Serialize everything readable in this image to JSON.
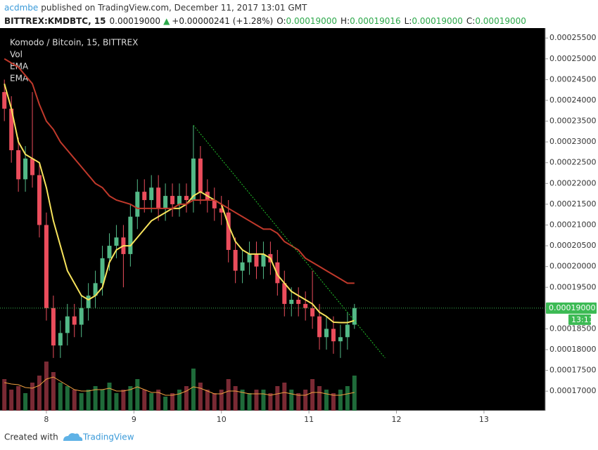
{
  "header": {
    "author": "acdmbe",
    "published": "published on TradingView.com, December 11, 2017 13:01 GMT",
    "symbol": "BITTREX:KMDBTC, 15",
    "last": "0.00019000",
    "arrow": "▲",
    "change": "+0.00000241 (+1.28%)",
    "ohlc": [
      {
        "label": "O:",
        "value": "0.00019000"
      },
      {
        "label": "H:",
        "value": "0.00019016"
      },
      {
        "label": "L:",
        "value": "0.00019000"
      },
      {
        "label": "C:",
        "value": "0.00019000"
      }
    ]
  },
  "chart_data": {
    "type": "candlestick",
    "title": "Komodo / Bitcoin, 15, BITTREX",
    "x": [
      7.52,
      7.6,
      7.68,
      7.76,
      7.84,
      7.92,
      8.0,
      8.08,
      8.16,
      8.24,
      8.32,
      8.4,
      8.48,
      8.56,
      8.64,
      8.72,
      8.8,
      8.88,
      8.96,
      9.04,
      9.12,
      9.2,
      9.28,
      9.36,
      9.44,
      9.52,
      9.6,
      9.68,
      9.76,
      9.84,
      9.92,
      10.0,
      10.08,
      10.16,
      10.24,
      10.32,
      10.4,
      10.48,
      10.56,
      10.64,
      10.72,
      10.8,
      10.88,
      10.96,
      11.04,
      11.12,
      11.2,
      11.28,
      11.36,
      11.44,
      11.52
    ],
    "candles": {
      "up_color": "#53b987",
      "down_color": "#eb4d5c",
      "open": [
        0.000242,
        0.000238,
        0.000228,
        0.000221,
        0.000226,
        0.000222,
        0.00021,
        0.00019,
        0.000181,
        0.000184,
        0.000188,
        0.000186,
        0.00019,
        0.000193,
        0.000196,
        0.000202,
        0.000205,
        0.000207,
        0.000203,
        0.000212,
        0.000218,
        0.000216,
        0.000219,
        0.000214,
        0.000217,
        0.000215,
        0.000217,
        0.000216,
        0.000226,
        0.000218,
        0.000216,
        0.000214,
        0.000213,
        0.000204,
        0.000199,
        0.000201,
        0.000203,
        0.0002,
        0.000203,
        0.000201,
        0.000196,
        0.000191,
        0.000192,
        0.000191,
        0.00019,
        0.000188,
        0.000183,
        0.000185,
        0.000182,
        0.000183,
        0.000186
      ],
      "high": [
        0.000245,
        0.000241,
        0.000231,
        0.000229,
        0.000242,
        0.000225,
        0.000213,
        0.000193,
        0.000187,
        0.000191,
        0.000191,
        0.000193,
        0.000196,
        0.000199,
        0.000205,
        0.000208,
        0.00021,
        0.00021,
        0.000215,
        0.000221,
        0.000221,
        0.000222,
        0.000222,
        0.00022,
        0.00022,
        0.00022,
        0.00022,
        0.000234,
        0.000229,
        0.000221,
        0.000219,
        0.000217,
        0.000216,
        0.000207,
        0.000204,
        0.000206,
        0.000206,
        0.000206,
        0.000206,
        0.000204,
        0.000199,
        0.000195,
        0.000195,
        0.000194,
        0.000199,
        0.000191,
        0.000188,
        0.000188,
        0.000186,
        0.000189,
        0.000191
      ],
      "low": [
        0.000235,
        0.000225,
        0.000218,
        0.000218,
        0.000219,
        0.000207,
        0.000187,
        0.000178,
        0.000178,
        0.000181,
        0.000183,
        0.000183,
        0.000187,
        0.00019,
        0.000193,
        0.000199,
        0.000202,
        0.000195,
        0.0002,
        0.000209,
        0.000213,
        0.000213,
        0.000211,
        0.000211,
        0.000212,
        0.000212,
        0.000213,
        0.000213,
        0.000215,
        0.000213,
        0.000211,
        0.00021,
        0.000201,
        0.000196,
        0.000196,
        0.000198,
        0.000197,
        0.000197,
        0.000198,
        0.000193,
        0.000188,
        0.000188,
        0.000188,
        0.000187,
        0.000185,
        0.00018,
        0.00018,
        0.000179,
        0.000178,
        0.00018,
        0.000185
      ],
      "close": [
        0.000238,
        0.000228,
        0.000221,
        0.000226,
        0.000222,
        0.00021,
        0.00019,
        0.000181,
        0.000184,
        0.000188,
        0.000186,
        0.00019,
        0.000193,
        0.000196,
        0.000202,
        0.000205,
        0.000207,
        0.000203,
        0.000212,
        0.000218,
        0.000216,
        0.000219,
        0.000214,
        0.000217,
        0.000215,
        0.000217,
        0.000216,
        0.000226,
        0.000218,
        0.000216,
        0.000214,
        0.000213,
        0.000204,
        0.000199,
        0.000201,
        0.000203,
        0.0002,
        0.000203,
        0.000201,
        0.000196,
        0.000191,
        0.000192,
        0.000191,
        0.00019,
        0.000188,
        0.000183,
        0.000185,
        0.000182,
        0.000183,
        0.000186,
        0.00019
      ]
    },
    "series": [
      {
        "name": "EMA",
        "color": "#f7e35c",
        "values": [
          0.000244,
          0.000238,
          0.00023,
          0.000227,
          0.000226,
          0.000225,
          0.000219,
          0.000211,
          0.000205,
          0.000199,
          0.000196,
          0.000193,
          0.000192,
          0.000193,
          0.000195,
          0.000201,
          0.000204,
          0.000205,
          0.000205,
          0.000207,
          0.000209,
          0.000211,
          0.000212,
          0.000213,
          0.000214,
          0.000214,
          0.000215,
          0.000217,
          0.000218,
          0.000217,
          0.000216,
          0.000215,
          0.00021,
          0.000206,
          0.000204,
          0.000203,
          0.000203,
          0.000203,
          0.000202,
          0.000198,
          0.000196,
          0.000194,
          0.000193,
          0.000192,
          0.000191,
          0.000189,
          0.000188,
          0.0001866,
          0.0001865,
          0.0001865,
          0.000187
        ]
      },
      {
        "name": "EMA",
        "color": "#c0392b",
        "values": [
          0.00025,
          0.000249,
          0.000248,
          0.000246,
          0.000244,
          0.000239,
          0.000235,
          0.000233,
          0.00023,
          0.000228,
          0.000226,
          0.000224,
          0.000222,
          0.00022,
          0.000219,
          0.000217,
          0.000216,
          0.0002155,
          0.000215,
          0.000214,
          0.000214,
          0.000214,
          0.000214,
          0.000214,
          0.000214,
          0.000215,
          0.000215,
          0.000216,
          0.000216,
          0.000216,
          0.000216,
          0.000215,
          0.000214,
          0.000213,
          0.000212,
          0.000211,
          0.00021,
          0.000209,
          0.000209,
          0.000208,
          0.000206,
          0.000205,
          0.000204,
          0.000202,
          0.000201,
          0.0002,
          0.000199,
          0.000198,
          0.000197,
          0.000196,
          0.000196
        ]
      }
    ],
    "volume": {
      "name": "Vol",
      "up_color": "#1f6b3a",
      "down_color": "#7a2a34",
      "ma_color": "#f0a040",
      "values": [
        45,
        30,
        35,
        25,
        40,
        50,
        70,
        55,
        40,
        35,
        30,
        25,
        30,
        35,
        30,
        40,
        25,
        30,
        35,
        45,
        30,
        25,
        30,
        20,
        25,
        30,
        35,
        60,
        40,
        30,
        25,
        30,
        45,
        35,
        30,
        25,
        30,
        30,
        25,
        35,
        40,
        30,
        25,
        30,
        45,
        35,
        30,
        25,
        30,
        35,
        50
      ],
      "ma": [
        40,
        38,
        37,
        33,
        32,
        36,
        45,
        48,
        42,
        36,
        30,
        28,
        28,
        30,
        30,
        32,
        28,
        28,
        30,
        34,
        30,
        26,
        26,
        22,
        22,
        24,
        28,
        34,
        32,
        28,
        24,
        24,
        28,
        28,
        26,
        24,
        24,
        24,
        22,
        24,
        26,
        24,
        22,
        22,
        26,
        26,
        24,
        22,
        22,
        24,
        26
      ]
    },
    "trendline": {
      "color": "#22c32a",
      "x": [
        9.68,
        11.87
      ],
      "y": [
        0.000234,
        0.000178
      ]
    },
    "price_tag": {
      "value": 0.00019,
      "label": "0.00019000",
      "time": "13:11",
      "color": "#3cba54"
    },
    "xlim": [
      7.47,
      13.7
    ],
    "xticks": [
      8,
      9,
      10,
      11,
      12,
      13
    ],
    "ylim": [
      0.0001653,
      0.0002574
    ],
    "yticks": [
      {
        "value": 0.00017,
        "label": "0.00017000"
      },
      {
        "value": 0.000175,
        "label": "0.00017500"
      },
      {
        "value": 0.00018,
        "label": "0.00018000"
      },
      {
        "value": 0.000185,
        "label": "0.00018500"
      },
      {
        "value": 0.00019,
        "label": "0.00019000"
      },
      {
        "value": 0.000195,
        "label": "0.00019500"
      },
      {
        "value": 0.0002,
        "label": "0.00020000"
      },
      {
        "value": 0.000205,
        "label": "0.00020500"
      },
      {
        "value": 0.00021,
        "label": "0.00021000"
      },
      {
        "value": 0.000215,
        "label": "0.00021500"
      },
      {
        "value": 0.00022,
        "label": "0.00022000"
      },
      {
        "value": 0.000225,
        "label": "0.00022500"
      },
      {
        "value": 0.00023,
        "label": "0.00023000"
      },
      {
        "value": 0.000235,
        "label": "0.00023500"
      },
      {
        "value": 0.00024,
        "label": "0.00024000"
      },
      {
        "value": 0.000245,
        "label": "0.00024500"
      },
      {
        "value": 0.00025,
        "label": "0.00025000"
      },
      {
        "value": 0.000255,
        "label": "0.00025500"
      }
    ]
  },
  "footer": {
    "text": "Created with",
    "brand": "TradingView"
  }
}
